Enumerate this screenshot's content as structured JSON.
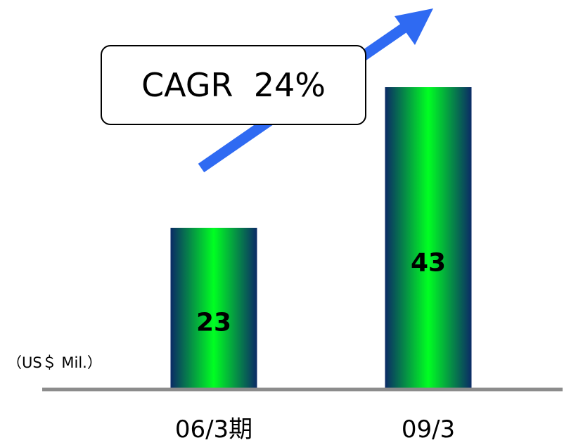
{
  "chart_data": {
    "type": "bar",
    "categories": [
      "06/3期",
      "09/3"
    ],
    "values": [
      23,
      43
    ],
    "ylim": [
      0,
      50
    ],
    "unit_label": "（US＄ Mil.）",
    "annotation": "CAGR  24%",
    "grid": false,
    "colors": {
      "bar_center": "#00ff22",
      "bar_edge": "#0b2a66",
      "arrow": "#2f6af2",
      "baseline": "#8c8c8c"
    }
  }
}
